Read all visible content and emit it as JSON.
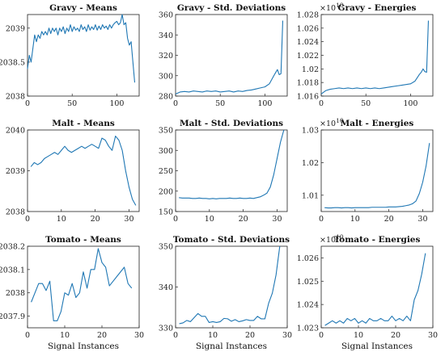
{
  "chart_data": [
    {
      "title": "Gravy - Means",
      "type": "line",
      "xlim": [
        0,
        125
      ],
      "ylim": [
        2038,
        2039.2
      ],
      "xticks": [
        0,
        50,
        100
      ],
      "xtick_labels": [
        "0",
        "50",
        "100"
      ],
      "yticks": [
        2038,
        2038.5,
        2039
      ],
      "ytick_labels": [
        "2038",
        "2038.5",
        "2039"
      ],
      "exponent": "",
      "xlabel": "",
      "x": [
        0,
        2,
        4,
        6,
        8,
        10,
        12,
        14,
        16,
        18,
        20,
        22,
        24,
        26,
        28,
        30,
        32,
        34,
        36,
        38,
        40,
        42,
        44,
        46,
        48,
        50,
        52,
        54,
        56,
        58,
        60,
        62,
        64,
        66,
        68,
        70,
        72,
        74,
        76,
        78,
        80,
        82,
        84,
        86,
        88,
        90,
        92,
        94,
        96,
        98,
        100,
        102,
        104,
        106,
        108,
        110,
        112,
        114,
        116,
        118,
        120
      ],
      "y": [
        2038.4,
        2038.6,
        2038.5,
        2038.7,
        2038.9,
        2038.8,
        2038.9,
        2038.85,
        2038.95,
        2038.9,
        2038.95,
        2038.9,
        2039.0,
        2038.92,
        2039.0,
        2038.95,
        2039.0,
        2038.9,
        2039.0,
        2038.95,
        2039.02,
        2038.92,
        2039.0,
        2038.95,
        2039.05,
        2038.95,
        2039.02,
        2038.97,
        2039.0,
        2038.95,
        2039.05,
        2038.98,
        2039.02,
        2038.95,
        2039.05,
        2038.97,
        2039.02,
        2038.98,
        2039.05,
        2038.97,
        2039.03,
        2038.98,
        2039.05,
        2039.0,
        2039.03,
        2038.98,
        2039.05,
        2039.0,
        2039.05,
        2039.08,
        2039.1,
        2039.05,
        2039.08,
        2039.2,
        2039.05,
        2039.08,
        2038.85,
        2038.75,
        2038.8,
        2038.5,
        2038.2
      ]
    },
    {
      "title": "Gravy - Std. Deviations",
      "type": "line",
      "xlim": [
        0,
        125
      ],
      "ylim": [
        280,
        360
      ],
      "xticks": [
        0,
        50,
        100
      ],
      "xtick_labels": [
        "0",
        "50",
        "100"
      ],
      "yticks": [
        280,
        300,
        320,
        340,
        360
      ],
      "ytick_labels": [
        "280",
        "300",
        "320",
        "340",
        "360"
      ],
      "exponent": "",
      "xlabel": "",
      "x": [
        0,
        5,
        10,
        15,
        20,
        25,
        30,
        35,
        40,
        45,
        50,
        55,
        60,
        65,
        70,
        75,
        80,
        85,
        90,
        95,
        100,
        105,
        110,
        112,
        114,
        116,
        118,
        120
      ],
      "y": [
        282,
        284,
        284.5,
        284,
        285,
        284.5,
        284,
        285,
        284.5,
        285,
        284,
        284.5,
        285,
        284,
        285,
        284.5,
        285.5,
        286,
        287,
        288,
        289,
        292,
        300,
        303,
        306,
        301,
        302,
        354
      ]
    },
    {
      "title": "Gravy - Energies",
      "type": "line",
      "xlim": [
        0,
        125
      ],
      "ylim": [
        1.016,
        1.028
      ],
      "xticks": [
        0,
        50,
        100
      ],
      "xtick_labels": [
        "0",
        "50",
        "100"
      ],
      "yticks": [
        1.016,
        1.018,
        1.02,
        1.022,
        1.024,
        1.026,
        1.028
      ],
      "ytick_labels": [
        "1.016",
        "1.018",
        "1.02",
        "1.022",
        "1.024",
        "1.026",
        "1.028"
      ],
      "exponent": "10",
      "xlabel": "",
      "x": [
        0,
        5,
        10,
        15,
        20,
        25,
        30,
        35,
        40,
        45,
        50,
        55,
        60,
        65,
        70,
        75,
        80,
        85,
        90,
        95,
        100,
        105,
        110,
        112,
        114,
        116,
        118,
        120
      ],
      "y": [
        1.0163,
        1.0168,
        1.017,
        1.0171,
        1.0172,
        1.0171,
        1.0172,
        1.0171,
        1.0172,
        1.0171,
        1.0172,
        1.0171,
        1.0172,
        1.0171,
        1.0172,
        1.0173,
        1.0174,
        1.0175,
        1.0176,
        1.0177,
        1.0178,
        1.0182,
        1.0192,
        1.0195,
        1.02,
        1.0196,
        1.0195,
        1.0271
      ]
    },
    {
      "title": "Malt - Means",
      "type": "line",
      "xlim": [
        0,
        33
      ],
      "ylim": [
        2038,
        2040
      ],
      "xticks": [
        0,
        10,
        20,
        30
      ],
      "xtick_labels": [
        "0",
        "10",
        "20",
        "30"
      ],
      "yticks": [
        2038,
        2039,
        2040
      ],
      "ytick_labels": [
        "2038",
        "2039",
        "2040"
      ],
      "exponent": "",
      "xlabel": "",
      "x": [
        1,
        2,
        3,
        4,
        5,
        6,
        7,
        8,
        9,
        10,
        11,
        12,
        13,
        14,
        15,
        16,
        17,
        18,
        19,
        20,
        21,
        22,
        23,
        24,
        25,
        26,
        27,
        28,
        29,
        30,
        31,
        32
      ],
      "y": [
        2039.1,
        2039.2,
        2039.15,
        2039.2,
        2039.3,
        2039.35,
        2039.4,
        2039.45,
        2039.4,
        2039.5,
        2039.6,
        2039.5,
        2039.45,
        2039.5,
        2039.55,
        2039.6,
        2039.55,
        2039.6,
        2039.65,
        2039.6,
        2039.55,
        2039.8,
        2039.75,
        2039.6,
        2039.5,
        2039.85,
        2039.75,
        2039.5,
        2039.0,
        2038.6,
        2038.3,
        2038.15
      ]
    },
    {
      "title": "Malt  - Std. Deviations",
      "type": "line",
      "xlim": [
        0,
        33
      ],
      "ylim": [
        150,
        350
      ],
      "xticks": [
        0,
        10,
        20,
        30
      ],
      "xtick_labels": [
        "0",
        "10",
        "20",
        "30"
      ],
      "yticks": [
        150,
        200,
        250,
        300,
        350
      ],
      "ytick_labels": [
        "150",
        "200",
        "250",
        "300",
        "350"
      ],
      "exponent": "",
      "xlabel": "",
      "x": [
        1,
        2,
        3,
        4,
        5,
        6,
        7,
        8,
        9,
        10,
        11,
        12,
        13,
        14,
        15,
        16,
        17,
        18,
        19,
        20,
        21,
        22,
        23,
        24,
        25,
        26,
        27,
        28,
        29,
        30,
        31,
        32
      ],
      "y": [
        184,
        183,
        183,
        183,
        182,
        182,
        183,
        182,
        182,
        181,
        182,
        181,
        182,
        182,
        182,
        183,
        182,
        182,
        183,
        182,
        182,
        183,
        182,
        184,
        186,
        190,
        195,
        210,
        240,
        280,
        320,
        350
      ]
    },
    {
      "title": "Malt - Energies",
      "type": "line",
      "xlim": [
        0,
        33
      ],
      "ylim": [
        1.005,
        1.03
      ],
      "xticks": [
        0,
        10,
        20,
        30
      ],
      "xtick_labels": [
        "0",
        "10",
        "20",
        "30"
      ],
      "yticks": [
        1.01,
        1.02,
        1.03
      ],
      "ytick_labels": [
        "1.01",
        "1.02",
        "1.03"
      ],
      "exponent": "10",
      "xlabel": "",
      "x": [
        1,
        2,
        3,
        4,
        5,
        6,
        7,
        8,
        9,
        10,
        11,
        12,
        13,
        14,
        15,
        16,
        17,
        18,
        19,
        20,
        21,
        22,
        23,
        24,
        25,
        26,
        27,
        28,
        29,
        30,
        31,
        32
      ],
      "y": [
        1.0062,
        1.0061,
        1.0061,
        1.0062,
        1.0062,
        1.0061,
        1.0062,
        1.0062,
        1.0061,
        1.0062,
        1.0062,
        1.0062,
        1.0062,
        1.0062,
        1.0063,
        1.0063,
        1.0063,
        1.0063,
        1.0063,
        1.0064,
        1.0064,
        1.0064,
        1.0065,
        1.0066,
        1.0068,
        1.007,
        1.0074,
        1.0082,
        1.0105,
        1.014,
        1.019,
        1.026
      ]
    },
    {
      "title": "Tomato - Means",
      "type": "line",
      "xlim": [
        0,
        30
      ],
      "ylim": [
        2037.85,
        2038.2
      ],
      "xticks": [
        0,
        10,
        20,
        30
      ],
      "xtick_labels": [
        "0",
        "10",
        "20",
        "30"
      ],
      "yticks": [
        2037.9,
        2038.0,
        2038.1,
        2038.2
      ],
      "ytick_labels": [
        "2037.9",
        "2038",
        "2038.1",
        "2038.2"
      ],
      "exponent": "",
      "xlabel": "Signal Instances",
      "x": [
        1,
        2,
        3,
        4,
        5,
        6,
        7,
        8,
        9,
        10,
        11,
        12,
        13,
        14,
        15,
        16,
        17,
        18,
        19,
        20,
        21,
        22,
        23,
        24,
        25,
        26,
        27,
        28
      ],
      "y": [
        2037.96,
        2038.0,
        2038.04,
        2038.04,
        2038.01,
        2038.05,
        2037.88,
        2037.88,
        2037.92,
        2038.0,
        2037.99,
        2038.04,
        2037.98,
        2038.0,
        2038.09,
        2038.02,
        2038.1,
        2038.1,
        2038.19,
        2038.13,
        2038.11,
        2038.03,
        2038.05,
        2038.07,
        2038.09,
        2038.11,
        2038.04,
        2038.02
      ]
    },
    {
      "title": "Tomato - Std. Deviations",
      "type": "line",
      "xlim": [
        0,
        30
      ],
      "ylim": [
        330,
        350
      ],
      "xticks": [
        0,
        10,
        20,
        30
      ],
      "xtick_labels": [
        "0",
        "10",
        "20",
        "30"
      ],
      "yticks": [
        330,
        340,
        350
      ],
      "ytick_labels": [
        "330",
        "340",
        "350"
      ],
      "exponent": "",
      "xlabel": "Signal Instances",
      "x": [
        1,
        2,
        3,
        4,
        5,
        6,
        7,
        8,
        9,
        10,
        11,
        12,
        13,
        14,
        15,
        16,
        17,
        18,
        19,
        20,
        21,
        22,
        23,
        24,
        25,
        26,
        27,
        28
      ],
      "y": [
        331,
        331.2,
        331.8,
        331.5,
        332.5,
        333.5,
        332.8,
        332.8,
        331.3,
        331.5,
        331.3,
        331.5,
        332.3,
        332.2,
        331.6,
        332.0,
        331.5,
        331.7,
        332.0,
        331.8,
        331.8,
        332.8,
        332.2,
        332.2,
        336,
        338.5,
        343,
        350
      ]
    },
    {
      "title": "Tomato - Energies",
      "type": "line",
      "xlim": [
        0,
        30
      ],
      "ylim": [
        1.023,
        1.0265
      ],
      "xticks": [
        0,
        10,
        20,
        30
      ],
      "xtick_labels": [
        "0",
        "10",
        "20",
        "30"
      ],
      "yticks": [
        1.023,
        1.024,
        1.025,
        1.026
      ],
      "ytick_labels": [
        "1.023",
        "1.024",
        "1.025",
        "1.026"
      ],
      "exponent": "10",
      "xlabel": "Signal Instances",
      "x": [
        1,
        2,
        3,
        4,
        5,
        6,
        7,
        8,
        9,
        10,
        11,
        12,
        13,
        14,
        15,
        16,
        17,
        18,
        19,
        20,
        21,
        22,
        23,
        24,
        25,
        26,
        27,
        28
      ],
      "y": [
        1.0231,
        1.0232,
        1.0233,
        1.0232,
        1.0233,
        1.0232,
        1.0234,
        1.0233,
        1.0234,
        1.0232,
        1.0233,
        1.0232,
        1.0234,
        1.0233,
        1.0233,
        1.0234,
        1.0233,
        1.0233,
        1.0235,
        1.0233,
        1.0234,
        1.0233,
        1.0235,
        1.0233,
        1.0242,
        1.0246,
        1.0253,
        1.0262
      ]
    }
  ]
}
